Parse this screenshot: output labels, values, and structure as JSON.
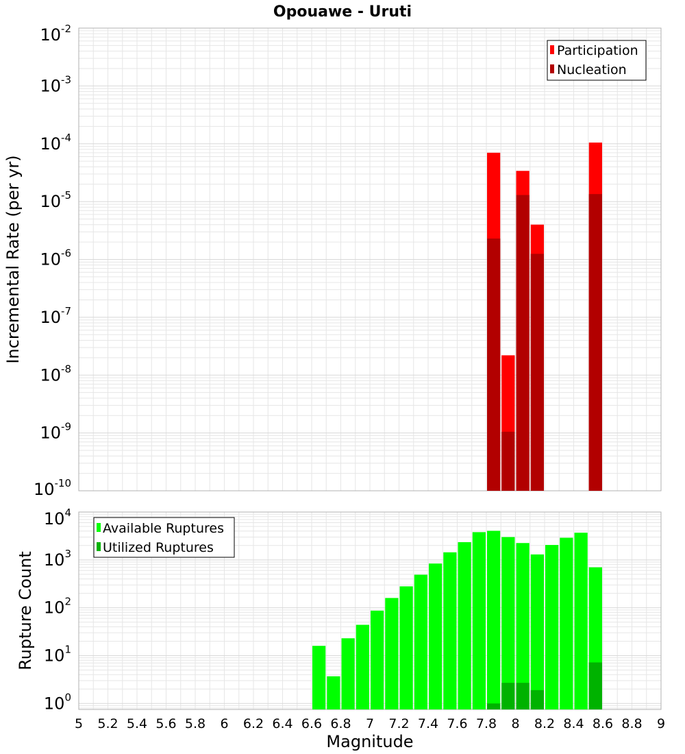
{
  "title": "Opouawe - Uruti",
  "colors": {
    "participation": "#ff0000",
    "nucleation": "#b20000",
    "available": "#00ff00",
    "utilized": "#00b200",
    "grid": "#e6e6e6",
    "frame": "#b0b0b0"
  },
  "chart_data": [
    {
      "type": "bar",
      "name": "rates",
      "ylabel": "Incremental Rate (per yr)",
      "xlabel": "",
      "yscale": "log",
      "ylim": [
        1e-10,
        0.01
      ],
      "xlim": [
        5,
        9
      ],
      "yticks": [
        {
          "base": "10",
          "exp": "-10",
          "value": 1e-10
        },
        {
          "base": "10",
          "exp": "-9",
          "value": 1e-09
        },
        {
          "base": "10",
          "exp": "-8",
          "value": 1e-08
        },
        {
          "base": "10",
          "exp": "-7",
          "value": 1e-07
        },
        {
          "base": "10",
          "exp": "-6",
          "value": 1e-06
        },
        {
          "base": "10",
          "exp": "-5",
          "value": 1e-05
        },
        {
          "base": "10",
          "exp": "-4",
          "value": 0.0001
        },
        {
          "base": "10",
          "exp": "-3",
          "value": 0.001
        },
        {
          "base": "10",
          "exp": "-2",
          "value": 0.01
        }
      ],
      "legend_position": "top-right",
      "series": [
        {
          "name": "Participation",
          "color": "#ff0000",
          "x": [
            7.85,
            7.95,
            8.05,
            8.15,
            8.55
          ],
          "values": [
            7e-05,
            2.2e-08,
            3.4e-05,
            4e-06,
            0.000105
          ]
        },
        {
          "name": "Nucleation",
          "color": "#b20000",
          "x": [
            7.85,
            7.95,
            8.05,
            8.15,
            8.55
          ],
          "values": [
            2.3e-06,
            1.05e-09,
            1.3e-05,
            1.25e-06,
            1.35e-05
          ]
        }
      ]
    },
    {
      "type": "bar",
      "name": "counts",
      "ylabel": "Rupture Count",
      "xlabel": "Magnitude",
      "yscale": "log",
      "ylim": [
        0.75,
        10000
      ],
      "xlim": [
        5,
        9
      ],
      "yticks": [
        {
          "base": "10",
          "exp": "0",
          "value": 1
        },
        {
          "base": "10",
          "exp": "1",
          "value": 10
        },
        {
          "base": "10",
          "exp": "2",
          "value": 100
        },
        {
          "base": "10",
          "exp": "3",
          "value": 1000
        },
        {
          "base": "10",
          "exp": "4",
          "value": 10000
        }
      ],
      "xticks": [
        "5",
        "5.2",
        "5.4",
        "5.6",
        "5.8",
        "6",
        "6.2",
        "6.4",
        "6.6",
        "6.8",
        "7",
        "7.2",
        "7.4",
        "7.6",
        "7.8",
        "8",
        "8.2",
        "8.4",
        "8.6",
        "8.8",
        "9"
      ],
      "legend_position": "top-left",
      "series": [
        {
          "name": "Available Ruptures",
          "color": "#00ff00",
          "x": [
            6.65,
            6.75,
            6.85,
            6.95,
            7.05,
            7.15,
            7.25,
            7.35,
            7.45,
            7.55,
            7.65,
            7.75,
            7.85,
            7.95,
            8.05,
            8.15,
            8.25,
            8.35,
            8.45,
            8.55
          ],
          "values": [
            16,
            3.7,
            23,
            44,
            87,
            160,
            280,
            490,
            840,
            1440,
            2350,
            3800,
            4050,
            3000,
            2250,
            1300,
            2050,
            2900,
            3700,
            700
          ]
        },
        {
          "name": "Utilized Ruptures",
          "color": "#00b200",
          "x": [
            7.85,
            7.95,
            8.05,
            8.15,
            8.55
          ],
          "values": [
            1,
            2.7,
            2.7,
            1.9,
            7.2
          ]
        }
      ]
    }
  ]
}
